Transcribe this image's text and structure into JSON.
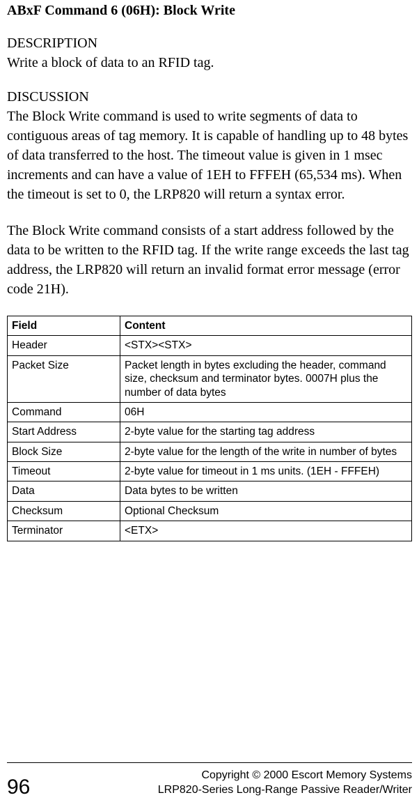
{
  "title": "ABxF Command 6 (06H): Block Write",
  "sections": {
    "description": {
      "heading": "DESCRIPTION",
      "text": "Write a block of data to an RFID tag."
    },
    "discussion": {
      "heading": "DISCUSSION",
      "para1": "The Block Write command is used to write segments of data to contiguous areas of tag memory.  It is capable of handling up to 48 bytes of data transferred to the host. The timeout value is given in 1 msec increments and can have a value of 1EH to FFFEH (65,534 ms).  When the timeout is set to 0, the LRP820 will return a syntax error.",
      "para2": "The Block Write command consists of a start address followed by the data to be written to the RFID tag.  If the write range exceeds the last tag address, the LRP820 will return an invalid format error message (error code 21H)."
    }
  },
  "table": {
    "columns": [
      "Field",
      "Content"
    ],
    "rows": [
      [
        "Header",
        "<STX><STX>"
      ],
      [
        "Packet Size",
        "Packet length in bytes excluding the header, command size, checksum and terminator bytes.  0007H plus the number of data bytes"
      ],
      [
        "Command",
        "06H"
      ],
      [
        "Start Address",
        "2-byte value for the starting tag address"
      ],
      [
        "Block Size",
        "2-byte value for the length of the write in number of bytes"
      ],
      [
        "Timeout",
        "2-byte value for timeout in 1 ms units. (1EH - FFFEH)"
      ],
      [
        "Data",
        "Data bytes to be written"
      ],
      [
        "Checksum",
        "Optional Checksum"
      ],
      [
        "Terminator",
        "<ETX>"
      ]
    ]
  },
  "footer": {
    "page": "96",
    "copyright": "Copyright © 2000 Escort Memory Systems",
    "product": "LRP820-Series Long-Range Passive Reader/Writer"
  }
}
